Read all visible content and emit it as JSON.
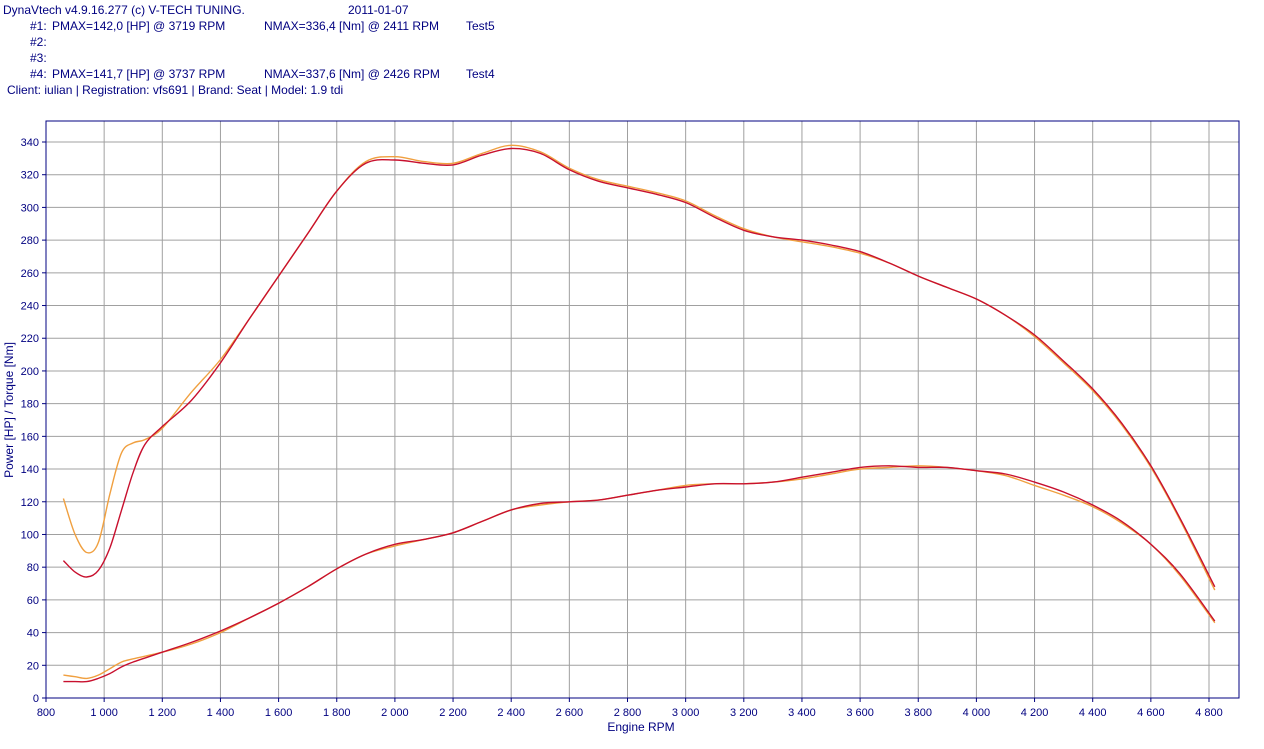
{
  "header": {
    "app_line": "DynaVtech v4.9.16.277 (c) V-TECH TUNING.",
    "date": "2011-01-07",
    "runs": [
      {
        "id": "#1:",
        "pmax": "PMAX=142,0 [HP] @ 3719 RPM",
        "nmax": "NMAX=336,4 [Nm] @ 2411 RPM",
        "name": "Test5"
      },
      {
        "id": "#2:",
        "pmax": "",
        "nmax": "",
        "name": ""
      },
      {
        "id": "#3:",
        "pmax": "",
        "nmax": "",
        "name": ""
      },
      {
        "id": "#4:",
        "pmax": "PMAX=141,7 [HP] @ 3737 RPM",
        "nmax": "NMAX=337,6 [Nm] @ 2426 RPM",
        "name": "Test4"
      }
    ],
    "client_line": "Client: iulian | Registration: vfs691 | Brand: Seat | Model: 1.9 tdi"
  },
  "chart_data": {
    "type": "line",
    "xlabel": "Engine RPM",
    "ylabel": "Power [HP] / Torque [Nm]",
    "xlim": [
      800,
      4850
    ],
    "ylim": [
      0,
      350
    ],
    "x_ticks": [
      800,
      1000,
      1200,
      1400,
      1600,
      1800,
      2000,
      2200,
      2400,
      2600,
      2800,
      3000,
      3200,
      3400,
      3600,
      3800,
      4000,
      4200,
      4400,
      4600,
      4800
    ],
    "x_tick_labels": [
      "800",
      "1 000",
      "1 200",
      "1 400",
      "1 600",
      "1 800",
      "2 000",
      "2 200",
      "2 400",
      "2 600",
      "2 800",
      "3 000",
      "3 200",
      "3 400",
      "3 600",
      "3 800",
      "4 000",
      "4 200",
      "4 400",
      "4 600",
      "4 800"
    ],
    "y_ticks": [
      0,
      20,
      40,
      60,
      80,
      100,
      120,
      140,
      160,
      180,
      200,
      220,
      240,
      260,
      280,
      300,
      320,
      340
    ],
    "grid": true,
    "colors": {
      "run1": "#c8102e",
      "run4": "#f0a040",
      "axis": "#000080",
      "grid": "#a0a0a0"
    },
    "series": [
      {
        "run": "#1",
        "kind": "torque",
        "color": "#c8102e",
        "x": [
          860,
          900,
          940,
          980,
          1020,
          1060,
          1100,
          1140,
          1200,
          1300,
          1400,
          1500,
          1600,
          1700,
          1800,
          1900,
          2000,
          2100,
          2200,
          2300,
          2400,
          2500,
          2600,
          2700,
          2800,
          2900,
          3000,
          3100,
          3200,
          3300,
          3400,
          3500,
          3600,
          3700,
          3800,
          3900,
          4000,
          4100,
          4200,
          4300,
          4400,
          4500,
          4600,
          4700,
          4820
        ],
        "y": [
          84,
          77,
          74,
          78,
          92,
          115,
          138,
          155,
          166,
          182,
          205,
          232,
          258,
          284,
          310,
          327,
          329,
          327,
          326,
          332,
          336,
          333,
          323,
          316,
          312,
          308,
          303,
          294,
          286,
          282,
          280,
          277,
          273,
          266,
          258,
          251,
          244,
          234,
          222,
          206,
          189,
          168,
          142,
          110,
          68
        ]
      },
      {
        "run": "#4",
        "kind": "torque",
        "color": "#f0a040",
        "x": [
          860,
          900,
          940,
          980,
          1020,
          1060,
          1100,
          1140,
          1200,
          1300,
          1400,
          1500,
          1600,
          1700,
          1800,
          1900,
          2000,
          2100,
          2200,
          2300,
          2400,
          2500,
          2600,
          2700,
          2800,
          2900,
          3000,
          3100,
          3200,
          3300,
          3400,
          3500,
          3600,
          3700,
          3800,
          3900,
          4000,
          4100,
          4200,
          4300,
          4400,
          4500,
          4600,
          4700,
          4820
        ],
        "y": [
          122,
          100,
          89,
          95,
          125,
          150,
          156,
          158,
          165,
          187,
          207,
          232,
          258,
          284,
          310,
          328,
          331,
          328,
          327,
          333,
          338,
          334,
          324,
          317,
          313,
          309,
          304,
          295,
          287,
          282,
          279,
          276,
          272,
          266,
          258,
          251,
          244,
          234,
          221,
          205,
          188,
          167,
          141,
          109,
          66
        ]
      },
      {
        "run": "#1",
        "kind": "power",
        "color": "#c8102e",
        "x": [
          860,
          900,
          940,
          980,
          1020,
          1060,
          1100,
          1200,
          1300,
          1400,
          1500,
          1600,
          1700,
          1800,
          1900,
          2000,
          2100,
          2200,
          2300,
          2400,
          2500,
          2600,
          2700,
          2800,
          2900,
          3000,
          3100,
          3200,
          3300,
          3400,
          3500,
          3600,
          3700,
          3800,
          3900,
          4000,
          4100,
          4200,
          4300,
          4400,
          4500,
          4600,
          4700,
          4820
        ],
        "y": [
          10,
          10,
          10,
          12,
          15,
          19,
          22,
          28,
          34,
          41,
          49,
          58,
          68,
          79,
          88,
          94,
          97,
          101,
          108,
          115,
          119,
          120,
          121,
          124,
          127,
          129,
          131,
          131,
          132,
          135,
          138,
          141,
          142,
          141,
          141,
          139,
          137,
          132,
          126,
          118,
          108,
          94,
          76,
          47
        ]
      },
      {
        "run": "#4",
        "kind": "power",
        "color": "#f0a040",
        "x": [
          860,
          900,
          940,
          980,
          1020,
          1060,
          1100,
          1200,
          1300,
          1400,
          1500,
          1600,
          1700,
          1800,
          1900,
          2000,
          2100,
          2200,
          2300,
          2400,
          2500,
          2600,
          2700,
          2800,
          2900,
          3000,
          3100,
          3200,
          3300,
          3400,
          3500,
          3600,
          3700,
          3800,
          3900,
          4000,
          4100,
          4200,
          4300,
          4400,
          4500,
          4600,
          4700,
          4820
        ],
        "y": [
          14,
          13,
          12,
          14,
          18,
          22,
          24,
          28,
          33,
          40,
          49,
          58,
          68,
          79,
          88,
          93,
          97,
          101,
          108,
          115,
          118,
          120,
          121,
          124,
          127,
          130,
          131,
          131,
          132,
          134,
          137,
          140,
          141,
          142,
          141,
          139,
          136,
          130,
          124,
          117,
          107,
          94,
          75,
          46
        ]
      }
    ]
  }
}
